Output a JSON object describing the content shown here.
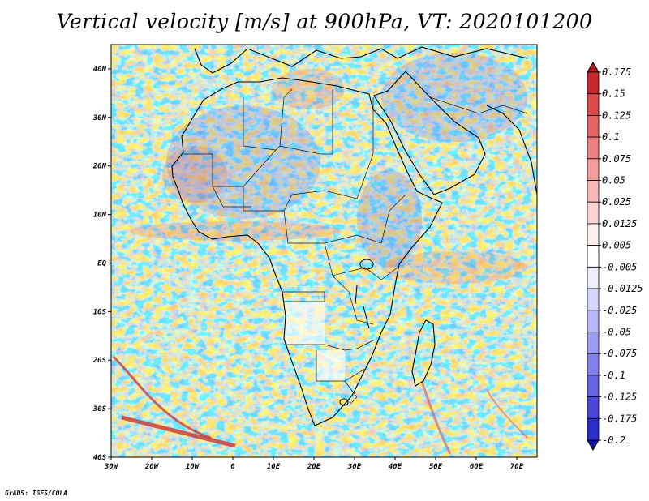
{
  "title": "Vertical velocity [m/s] at 900hPa, VT: 2020101200",
  "credit": "GrADS: IGES/COLA",
  "map": {
    "lon_range": [
      -30,
      75
    ],
    "lat_range": [
      -40,
      45
    ],
    "lon_ticks": [
      {
        "value": -30,
        "label": "30W"
      },
      {
        "value": -20,
        "label": "20W"
      },
      {
        "value": -10,
        "label": "10W"
      },
      {
        "value": 0,
        "label": "0"
      },
      {
        "value": 10,
        "label": "10E"
      },
      {
        "value": 20,
        "label": "20E"
      },
      {
        "value": 30,
        "label": "30E"
      },
      {
        "value": 40,
        "label": "40E"
      },
      {
        "value": 50,
        "label": "50E"
      },
      {
        "value": 60,
        "label": "60E"
      },
      {
        "value": 70,
        "label": "70E"
      }
    ],
    "lat_ticks": [
      {
        "value": 40,
        "label": "40N"
      },
      {
        "value": 30,
        "label": "30N"
      },
      {
        "value": 20,
        "label": "20N"
      },
      {
        "value": 10,
        "label": "10N"
      },
      {
        "value": 0,
        "label": "EQ"
      },
      {
        "value": -10,
        "label": "10S"
      },
      {
        "value": -20,
        "label": "20S"
      },
      {
        "value": -30,
        "label": "30S"
      },
      {
        "value": -40,
        "label": "40S"
      }
    ]
  },
  "colorbar": {
    "levels": [
      "0.175",
      "0.15",
      "0.125",
      "0.1",
      "0.075",
      "0.05",
      "0.025",
      "0.0125",
      "0.005",
      "-0.005",
      "-0.0125",
      "-0.025",
      "-0.05",
      "-0.075",
      "-0.1",
      "-0.125",
      "-0.175",
      "-0.2"
    ],
    "colors": [
      "#b4141a",
      "#c8282c",
      "#dc4a4a",
      "#e86464",
      "#ee8080",
      "#f49c9c",
      "#f8b8b8",
      "#fcd4d4",
      "#ffeeee",
      "#ffffff",
      "#eeeeff",
      "#d4d4fc",
      "#b8b8f8",
      "#9c9cf4",
      "#8080ee",
      "#6464e6",
      "#4848dc",
      "#2c2cc8",
      "#1414a0"
    ]
  }
}
